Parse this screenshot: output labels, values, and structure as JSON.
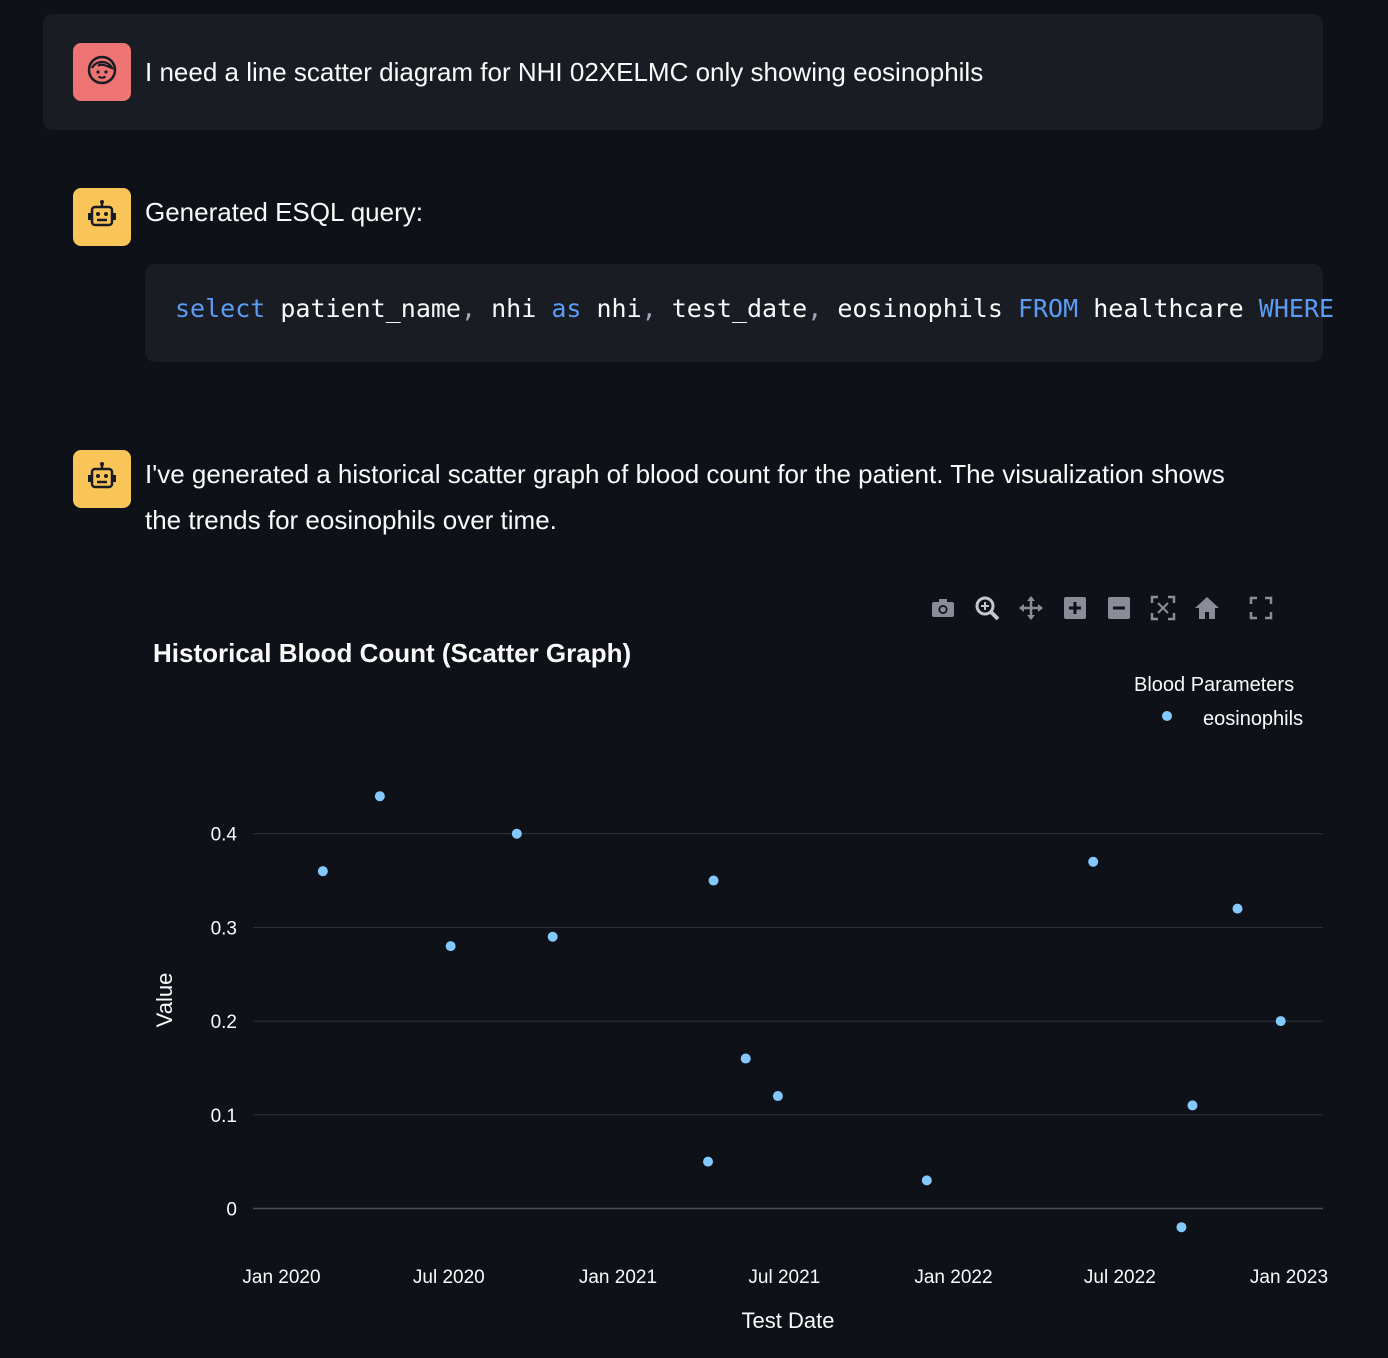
{
  "user_message": {
    "avatar_icon": "user-face-icon",
    "text": "I need a line scatter diagram for NHI 02XELMC only showing eosinophils"
  },
  "bot_message_1": {
    "avatar_icon": "robot-icon",
    "text": "Generated ESQL query:",
    "code": {
      "tokens": [
        {
          "t": "select",
          "c": "kw"
        },
        {
          "t": " patient_name",
          "c": "id"
        },
        {
          "t": ",",
          "c": "punc"
        },
        {
          "t": " nhi ",
          "c": "id"
        },
        {
          "t": "as",
          "c": "kw"
        },
        {
          "t": " nhi",
          "c": "id"
        },
        {
          "t": ",",
          "c": "punc"
        },
        {
          "t": " test_date",
          "c": "id"
        },
        {
          "t": ",",
          "c": "punc"
        },
        {
          "t": " eosinophils ",
          "c": "id"
        },
        {
          "t": "FROM",
          "c": "kw"
        },
        {
          "t": " healthcare ",
          "c": "id"
        },
        {
          "t": "WHERE",
          "c": "kw"
        }
      ]
    }
  },
  "bot_message_2": {
    "avatar_icon": "robot-icon",
    "text_line1": "I've generated a historical scatter graph of blood count for the patient. The visualization shows",
    "text_line2": "the trends for eosinophils over time."
  },
  "modebar": {
    "icons": [
      "camera-icon",
      "zoom-icon",
      "pan-icon",
      "zoom-in-icon",
      "zoom-out-icon",
      "autoscale-icon",
      "reset-axes-icon",
      "fullscreen-icon"
    ]
  },
  "colors": {
    "background": "#0e1117",
    "panel": "#1a1c24",
    "user_avatar": "#ee7373",
    "bot_avatar": "#f9c458",
    "keyword": "#5b9df6",
    "marker": "#83c9ff",
    "grid": "#31333f"
  },
  "chart_data": {
    "type": "scatter",
    "title": "Historical Blood Count (Scatter Graph)",
    "xlabel": "Test Date",
    "ylabel": "Value",
    "x_ticks": [
      "Jan 2020",
      "Jul 2020",
      "Jan 2021",
      "Jul 2021",
      "Jan 2022",
      "Jul 2022",
      "Jan 2023"
    ],
    "x_tick_dates": [
      "2020-01-01",
      "2020-07-01",
      "2021-01-01",
      "2021-07-01",
      "2022-01-01",
      "2022-07-01",
      "2023-01-01"
    ],
    "y_ticks": [
      0,
      0.1,
      0.2,
      0.3,
      0.4
    ],
    "xlim": [
      "2019-12-01",
      "2023-02-07"
    ],
    "ylim": [
      -0.055,
      0.5
    ],
    "grid": true,
    "legend": {
      "title": "Blood Parameters",
      "position": "top-right"
    },
    "series": [
      {
        "name": "eosinophils",
        "points": [
          {
            "x": "2020-02-15",
            "y": 0.36
          },
          {
            "x": "2020-04-17",
            "y": 0.44
          },
          {
            "x": "2020-07-03",
            "y": 0.28
          },
          {
            "x": "2020-09-13",
            "y": 0.4
          },
          {
            "x": "2020-10-22",
            "y": 0.29
          },
          {
            "x": "2021-04-09",
            "y": 0.05
          },
          {
            "x": "2021-04-15",
            "y": 0.35
          },
          {
            "x": "2021-05-20",
            "y": 0.16
          },
          {
            "x": "2021-06-24",
            "y": 0.12
          },
          {
            "x": "2021-12-03",
            "y": 0.03
          },
          {
            "x": "2022-06-02",
            "y": 0.37
          },
          {
            "x": "2022-09-06",
            "y": -0.02
          },
          {
            "x": "2022-09-18",
            "y": 0.11
          },
          {
            "x": "2022-11-06",
            "y": 0.32
          },
          {
            "x": "2022-12-23",
            "y": 0.2
          }
        ]
      }
    ]
  }
}
